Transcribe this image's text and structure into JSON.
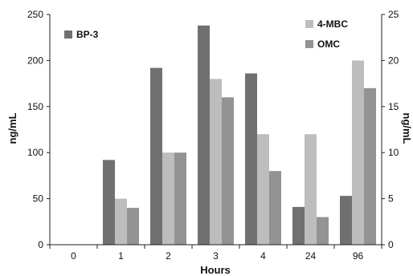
{
  "chart_data": {
    "type": "bar",
    "title": "",
    "categories": [
      "0",
      "1",
      "2",
      "3",
      "4",
      "24",
      "96"
    ],
    "xlabel": "Hours",
    "ylabel_left": "ng/mL",
    "ylabel_right": "ng/mL",
    "ylim_left": [
      0,
      250
    ],
    "ylim_right": [
      0,
      25
    ],
    "yticks_left": [
      "0",
      "50",
      "100",
      "150",
      "200",
      "250"
    ],
    "yticks_right": [
      "0",
      "5",
      "10",
      "15",
      "20",
      "25"
    ],
    "grid": false,
    "series": [
      {
        "name": "BP-3",
        "axis": "left",
        "color": "#707070",
        "values": [
          0,
          92,
          192,
          238,
          186,
          41,
          53
        ]
      },
      {
        "name": "4-MBC",
        "axis": "right",
        "color": "#bdbdbd",
        "values": [
          0,
          5,
          10,
          18,
          12,
          12,
          20
        ]
      },
      {
        "name": "OMC",
        "axis": "right",
        "color": "#939393",
        "values": [
          0,
          4,
          10,
          16,
          8,
          3,
          17
        ]
      }
    ],
    "legend_placement": "split: BP-3 top-left, 4-MBC and OMC top-right"
  }
}
